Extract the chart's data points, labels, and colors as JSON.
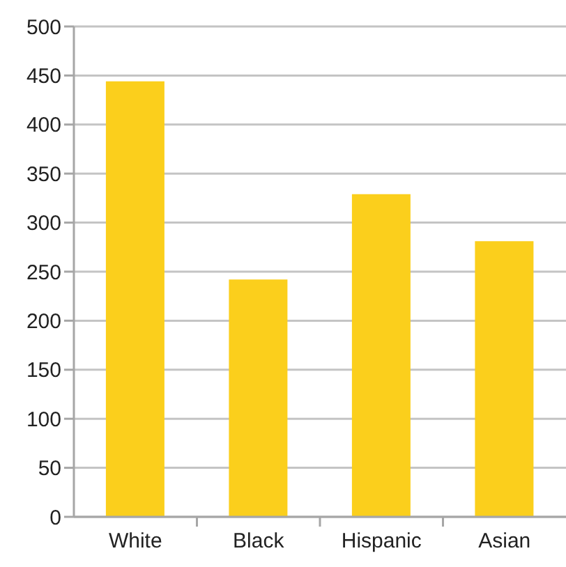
{
  "chart_data": {
    "type": "bar",
    "categories": [
      "White",
      "Black",
      "Hispanic",
      "Asian"
    ],
    "values": [
      444,
      242,
      329,
      281
    ],
    "color": "#fbcf1c",
    "ylim": [
      0,
      500
    ],
    "yticks": [
      0,
      50,
      100,
      150,
      200,
      250,
      300,
      350,
      400,
      450,
      500
    ],
    "grid": "y"
  }
}
